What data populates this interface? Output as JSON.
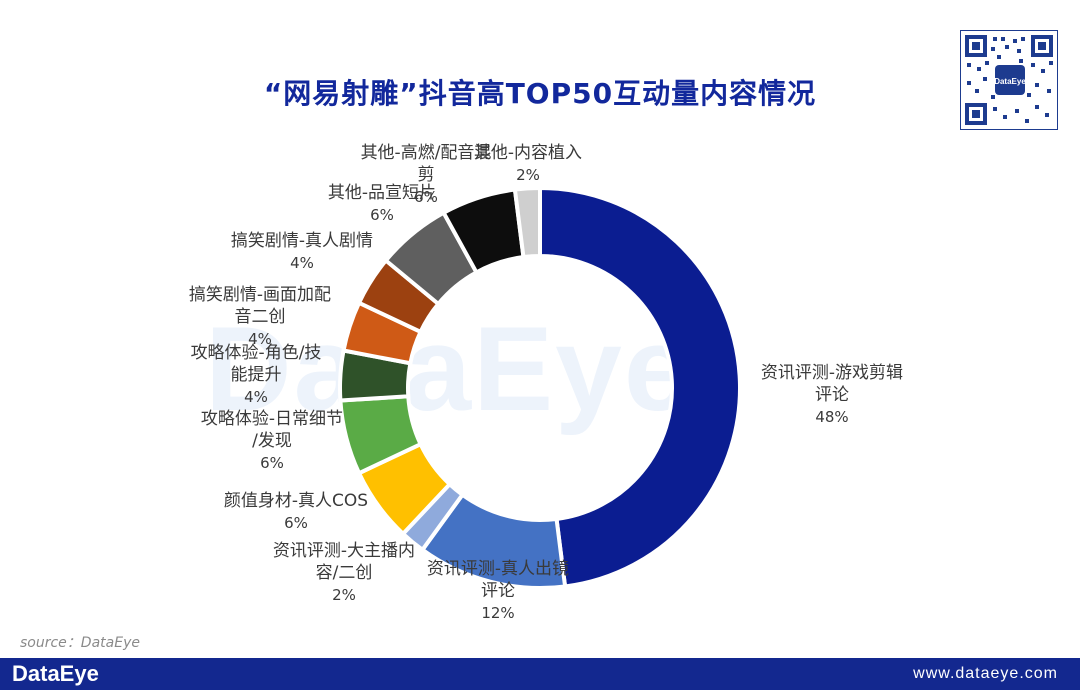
{
  "header": {
    "title": "“网易射雕”抖音高TOP50互动量内容情况"
  },
  "watermark": "DataEye",
  "qr_badge": "DataEye",
  "source": "source：DataEye",
  "footer": {
    "brand": "DataEye",
    "url": "www.dataeye.com"
  },
  "chart_data": {
    "type": "pie",
    "variant": "donut",
    "title": "“网易射雕”抖音高TOP50互动量内容情况",
    "unit": "%",
    "slices": [
      {
        "label": "资讯评测-游戏剪辑评论",
        "label_lines": [
          "资讯评测-游戏剪辑",
          "评论"
        ],
        "value": 48,
        "display": "48%",
        "color": "#0b1d91"
      },
      {
        "label": "资讯评测-真人出镜评论",
        "label_lines": [
          "资讯评测-真人出镜",
          "评论"
        ],
        "value": 12,
        "display": "12%",
        "color": "#4472c4"
      },
      {
        "label": "资讯评测-大主播内容/二创",
        "label_lines": [
          "资讯评测-大主播内",
          "容/二创"
        ],
        "value": 2,
        "display": "2%",
        "color": "#8faadc"
      },
      {
        "label": "颜值身材-真人COS",
        "label_lines": [
          "颜值身材-真人COS"
        ],
        "value": 6,
        "display": "6%",
        "color": "#ffc000"
      },
      {
        "label": "攻略体验-日常细节/发现",
        "label_lines": [
          "攻略体验-日常细节",
          "/发现"
        ],
        "value": 6,
        "display": "6%",
        "color": "#5aab46"
      },
      {
        "label": "攻略体验-角色/技能提升",
        "label_lines": [
          "攻略体验-角色/技",
          "能提升"
        ],
        "value": 4,
        "display": "4%",
        "color": "#2f5229"
      },
      {
        "label": "搞笑剧情-画面加配音二创",
        "label_lines": [
          "搞笑剧情-画面加配",
          "音二创"
        ],
        "value": 4,
        "display": "4%",
        "color": "#cf5a16"
      },
      {
        "label": "搞笑剧情-真人剧情",
        "label_lines": [
          "搞笑剧情-真人剧情"
        ],
        "value": 4,
        "display": "4%",
        "color": "#9c4110"
      },
      {
        "label": "其他-品宣短片",
        "label_lines": [
          "其他-品宣短片"
        ],
        "value": 6,
        "display": "6%",
        "color": "#5f5f5f"
      },
      {
        "label": "其他-高燃/配音混剪",
        "label_lines": [
          "其他-高燃/配音混",
          "剪"
        ],
        "value": 6,
        "display": "6%",
        "color": "#0d0d0d"
      },
      {
        "label": "其他-内容植入",
        "label_lines": [
          "其他-内容植入"
        ],
        "value": 2,
        "display": "2%",
        "color": "#cfcfcf"
      }
    ]
  }
}
